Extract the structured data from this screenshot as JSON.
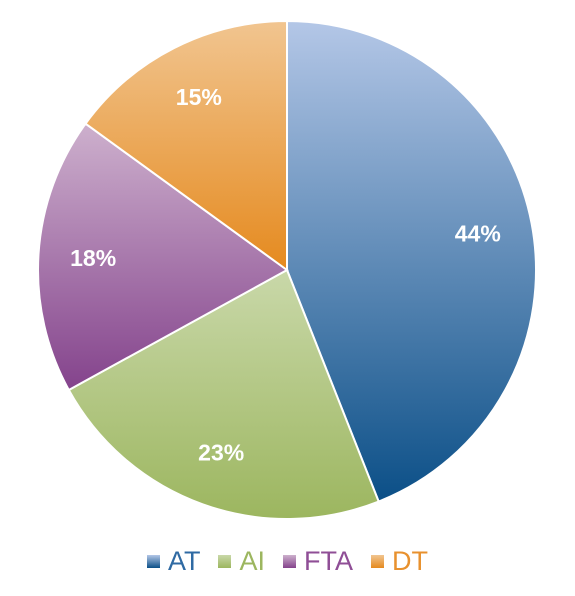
{
  "chart_data": {
    "type": "pie",
    "title": "",
    "categories": [
      "AT",
      "AI",
      "FTA",
      "DT"
    ],
    "values": [
      44,
      23,
      18,
      15
    ],
    "labels": [
      "44%",
      "23%",
      "18%",
      "15%"
    ],
    "colors": [
      {
        "light": "#B4C7E7",
        "dark": "#0B4F87"
      },
      {
        "light": "#C9D8A9",
        "dark": "#9CB65F"
      },
      {
        "light": "#CDB0CD",
        "dark": "#84438C"
      },
      {
        "light": "#F1C590",
        "dark": "#E58A1F"
      }
    ],
    "legend_colors": [
      "#2F6AA3",
      "#9CB65F",
      "#8F4E96",
      "#E8912E"
    ],
    "legend_position": "bottom",
    "start_angle": "12 o'clock",
    "direction": "clockwise"
  }
}
